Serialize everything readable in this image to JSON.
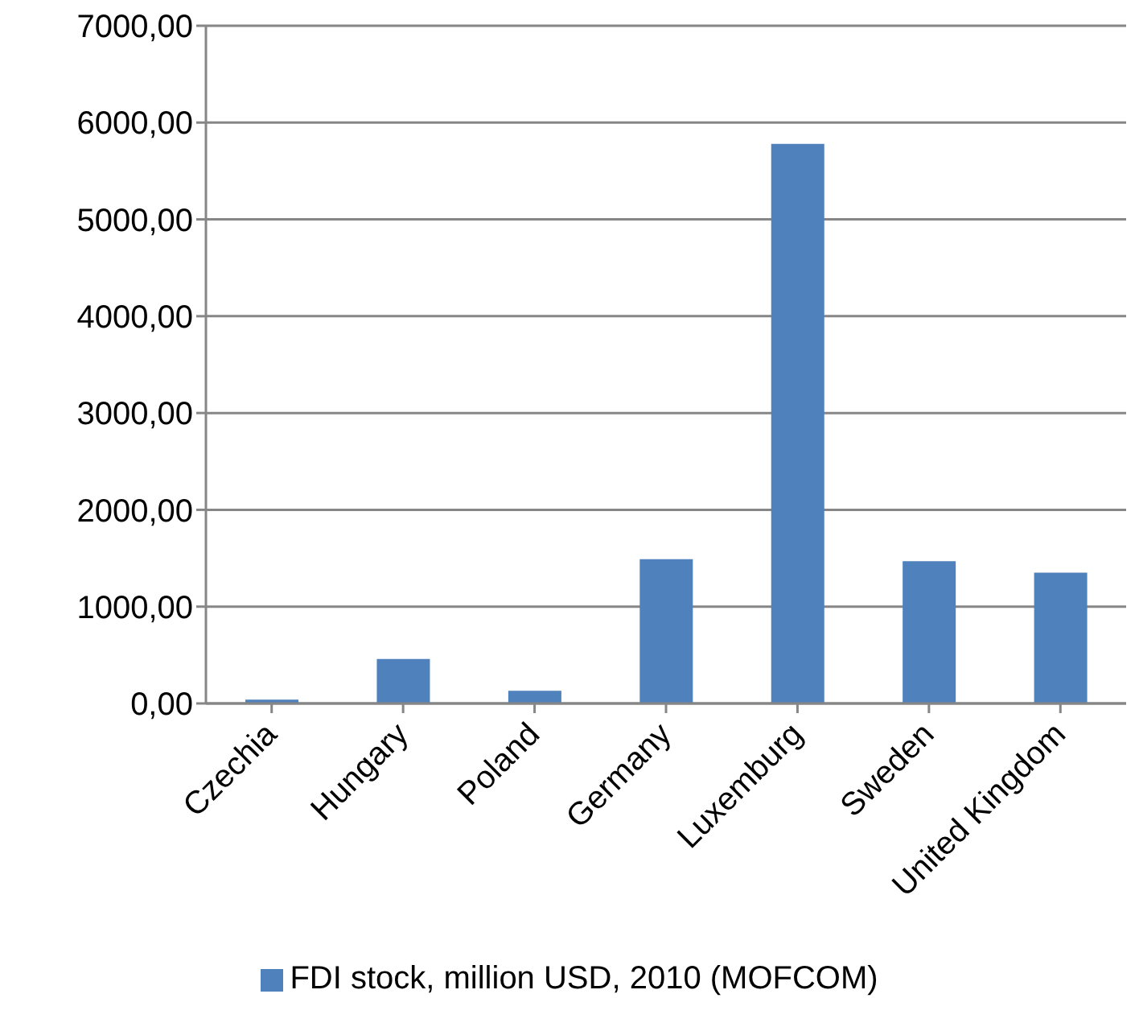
{
  "chart_data": {
    "type": "bar",
    "categories": [
      "Czechia",
      "Hungary",
      "Poland",
      "Germany",
      "Luxemburg",
      "Sweden",
      "United Kingdom"
    ],
    "series": [
      {
        "name": "FDI stock, million USD, 2010 (MOFCOM)",
        "color": "#4f81bd",
        "values": [
          40,
          460,
          130,
          1490,
          5780,
          1470,
          1350
        ]
      }
    ],
    "ylim": [
      0,
      7000
    ],
    "yticks": [
      {
        "value": 0,
        "label": "0,00"
      },
      {
        "value": 1000,
        "label": "1000,00"
      },
      {
        "value": 2000,
        "label": "2000,00"
      },
      {
        "value": 3000,
        "label": "3000,00"
      },
      {
        "value": 4000,
        "label": "4000,00"
      },
      {
        "value": 5000,
        "label": "5000,00"
      },
      {
        "value": 6000,
        "label": "6000,00"
      },
      {
        "value": 7000,
        "label": "7000,00"
      }
    ],
    "grid": "y",
    "legend": "bottom"
  }
}
